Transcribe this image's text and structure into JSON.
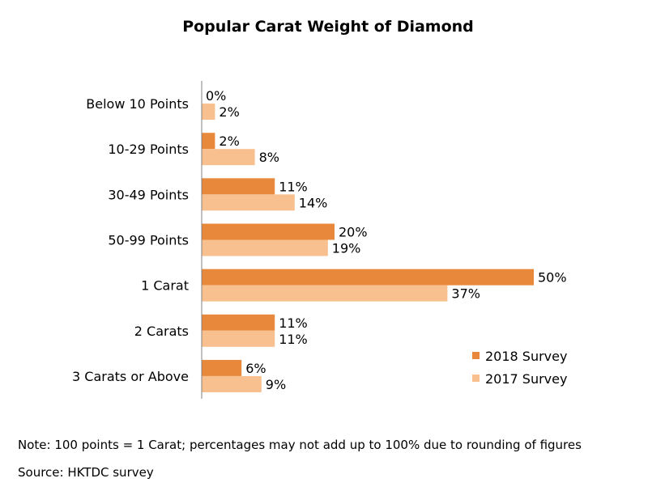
{
  "chart_data": {
    "type": "bar",
    "orientation": "horizontal",
    "title": "Popular Carat Weight of Diamond",
    "categories": [
      "Below 10 Points",
      "10-29 Points",
      "30-49 Points",
      "50-99 Points",
      "1 Carat",
      "2 Carats",
      "3 Carats or Above"
    ],
    "series": [
      {
        "name": "2018 Survey",
        "color": "#E8883A",
        "values": [
          0,
          2,
          11,
          20,
          50,
          11,
          6
        ]
      },
      {
        "name": "2017 Survey",
        "color": "#F8C08E",
        "values": [
          2,
          8,
          14,
          19,
          37,
          11,
          9
        ]
      }
    ],
    "value_suffix": "%",
    "xlim": [
      0,
      50
    ],
    "legend_position": "bottom-right",
    "grid": false
  },
  "notes": {
    "note": "Note: 100 points = 1 Carat; percentages may not add up to 100% due to rounding of figures",
    "source": "Source: HKTDC survey"
  }
}
